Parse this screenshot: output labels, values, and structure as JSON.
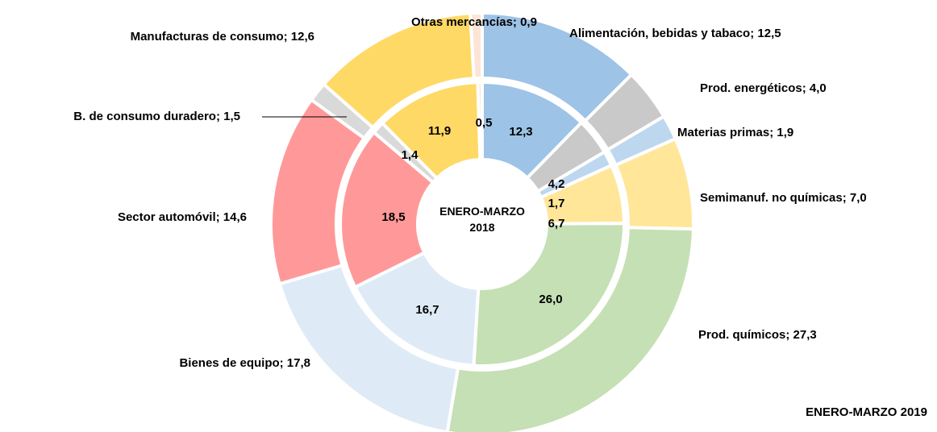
{
  "chart_data": {
    "type": "donut",
    "series": [
      {
        "name": "ENERO-MARZO 2019",
        "ring": "outer",
        "values": [
          12.5,
          4.0,
          1.9,
          7.0,
          27.3,
          17.8,
          14.6,
          1.5,
          12.6,
          0.9
        ],
        "value_labels": [
          "Alimentación, bebidas y tabaco; 12,5",
          "Prod. energéticos; 4,0",
          "Materias primas; 1,9",
          "Semimanuf. no químicas; 7,0",
          "Prod. químicos; 27,3",
          "Bienes de equipo; 17,8",
          "Sector automóvil; 14,6",
          "B. de consumo duradero; 1,5",
          "Manufacturas de consumo; 12,6",
          "Otras mercancías; 0,9"
        ]
      },
      {
        "name": "ENERO-MARZO 2018",
        "ring": "inner",
        "values": [
          12.3,
          4.2,
          1.7,
          6.7,
          26.0,
          16.7,
          18.5,
          1.4,
          11.9,
          0.5
        ],
        "value_labels": [
          "12,3",
          "4,2",
          "1,7",
          "6,7",
          "26,0",
          "16,7",
          "18,5",
          "1,4",
          "11,9",
          "0,5"
        ]
      }
    ],
    "colors": [
      "#9dc3e6",
      "#c9c9c9",
      "#bdd7ee",
      "#ffe699",
      "#c5e0b4",
      "#deebf7",
      "#ff9999",
      "#d9d9d9",
      "#ffd966",
      "#fbe5d6"
    ]
  }
}
